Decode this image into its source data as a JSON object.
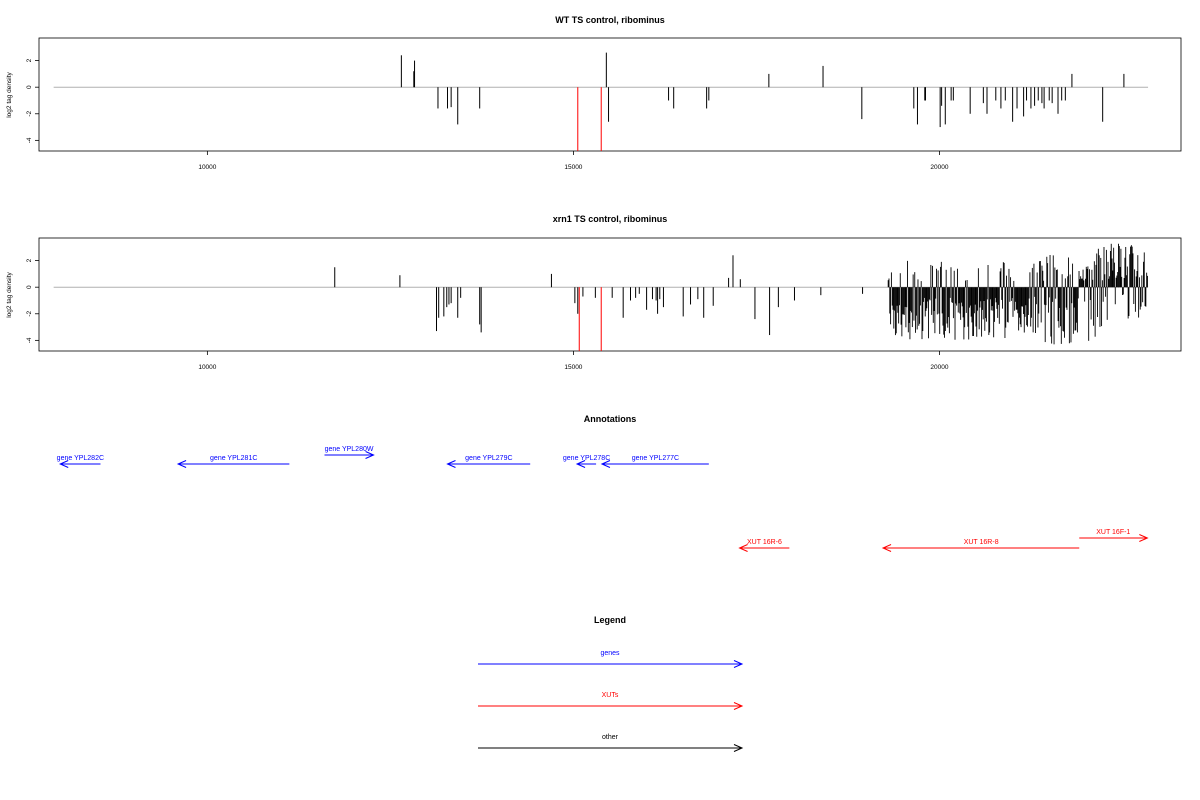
{
  "colors": {
    "gene": "#0000ff",
    "xut": "#ff0000",
    "other": "#000000",
    "baseline": "#b0b0b0",
    "bar": "#000000"
  },
  "chart_data": [
    {
      "type": "bar",
      "title": "WT TS control, ribominus",
      "ylabel": "log2 tag density",
      "xlim": [
        7700,
        23300
      ],
      "ylim": [
        -4.8,
        3.7
      ],
      "xticks": [
        10000,
        15000,
        20000
      ],
      "yticks": [
        2,
        0,
        -2,
        -4
      ],
      "x": [
        12650,
        12820,
        12830,
        13150,
        13280,
        13330,
        13420,
        13720,
        15060,
        15380,
        15450,
        15480,
        16300,
        16370,
        16820,
        16850,
        17670,
        18410,
        18940,
        19650,
        19700,
        19800,
        19810,
        20010,
        20030,
        20080,
        20160,
        20190,
        20420,
        20600,
        20650,
        20770,
        20840,
        20900,
        21000,
        21060,
        21150,
        21190,
        21250,
        21300,
        21350,
        21400,
        21430,
        21500,
        21540,
        21620,
        21670,
        21720,
        21810,
        22230,
        22520
      ],
      "values": [
        2.4,
        1.2,
        2.0,
        -1.6,
        -1.6,
        -1.5,
        -2.8,
        -1.6,
        -4.8,
        -4.8,
        2.6,
        -2.6,
        -1.0,
        -1.6,
        -1.6,
        -1.0,
        1.0,
        1.6,
        -2.4,
        -1.6,
        -2.8,
        -1.0,
        -1.0,
        -3.0,
        -1.4,
        -2.8,
        -1.0,
        -1.0,
        -2.0,
        -1.2,
        -2.0,
        -1.0,
        -1.6,
        -1.0,
        -2.6,
        -1.6,
        -2.2,
        -1.0,
        -1.6,
        -1.4,
        -1.0,
        -1.2,
        -1.6,
        -1.0,
        -1.2,
        -2.0,
        -1.0,
        -1.0,
        1.0,
        -2.6,
        1.0
      ],
      "highlight": [
        15060,
        15380
      ],
      "baseline_range": [
        7900,
        22850
      ]
    },
    {
      "type": "bar",
      "title": "xrn1 TS control, ribominus",
      "ylabel": "log2 tag density",
      "xlim": [
        7700,
        23300
      ],
      "ylim": [
        -4.8,
        3.7
      ],
      "xticks": [
        10000,
        15000,
        20000
      ],
      "yticks": [
        2,
        0,
        -2,
        -4
      ],
      "x": [
        11740,
        12630,
        13130,
        13160,
        13230,
        13270,
        13300,
        13330,
        13420,
        13460,
        13720,
        13740,
        14700,
        15020,
        15060,
        15080,
        15130,
        15300,
        15380,
        15530,
        15680,
        15780,
        15850,
        15900,
        16000,
        16080,
        16130,
        16150,
        16180,
        16230,
        16500,
        16600,
        16700,
        16780,
        16910,
        17120,
        17180,
        17280,
        17480,
        17680,
        17800,
        18020,
        18380,
        18950
      ],
      "values": [
        1.5,
        0.9,
        -3.3,
        -2.3,
        -2.2,
        -1.5,
        -1.3,
        -1.2,
        -2.3,
        -0.8,
        -2.8,
        -3.4,
        1.0,
        -1.2,
        -2.0,
        -4.8,
        -0.7,
        -0.8,
        -4.8,
        -0.8,
        -2.3,
        -1.0,
        -0.8,
        -0.5,
        -1.7,
        -0.9,
        -1.0,
        -2.0,
        -0.9,
        -1.5,
        -2.2,
        -1.3,
        -0.9,
        -2.3,
        -1.4,
        0.7,
        2.4,
        0.6,
        -2.4,
        -3.6,
        -1.5,
        -1.0,
        -0.6,
        -0.5
      ],
      "dense_region": [
        19300,
        22850
      ],
      "highlight": [
        15080,
        15380
      ],
      "baseline_range": [
        7900,
        22850
      ]
    }
  ],
  "panels": {
    "annotations_title": "Annotations",
    "legend_title": "Legend"
  },
  "annotations": [
    {
      "label": "gene YPL282C",
      "kind": "gene",
      "dir": "left",
      "start": 7990,
      "end": 8540,
      "row": "genes-low"
    },
    {
      "label": "gene YPL281C",
      "kind": "gene",
      "dir": "left",
      "start": 9600,
      "end": 11120,
      "row": "genes-low"
    },
    {
      "label": "gene YPL280W",
      "kind": "gene",
      "dir": "right",
      "start": 11600,
      "end": 12270,
      "row": "genes-high"
    },
    {
      "label": "gene YPL279C",
      "kind": "gene",
      "dir": "left",
      "start": 13280,
      "end": 14410,
      "row": "genes-low"
    },
    {
      "label": "gene YPL278C",
      "kind": "gene",
      "dir": "left",
      "start": 15050,
      "end": 15310,
      "row": "genes-low"
    },
    {
      "label": "gene YPL277C",
      "kind": "gene",
      "dir": "left",
      "start": 15390,
      "end": 16850,
      "row": "genes-low"
    },
    {
      "label": "XUT 16R-6",
      "kind": "xut",
      "dir": "left",
      "start": 17270,
      "end": 17950,
      "row": "xut-low"
    },
    {
      "label": "XUT 16R-8",
      "kind": "xut",
      "dir": "left",
      "start": 19230,
      "end": 21910,
      "row": "xut-low"
    },
    {
      "label": "XUT 16F-1",
      "kind": "xut",
      "dir": "right",
      "start": 21910,
      "end": 22840,
      "row": "xut-high"
    }
  ],
  "legend": [
    {
      "label": "genes",
      "kind": "gene"
    },
    {
      "label": "XUTs",
      "kind": "xut"
    },
    {
      "label": "other",
      "kind": "other"
    }
  ]
}
